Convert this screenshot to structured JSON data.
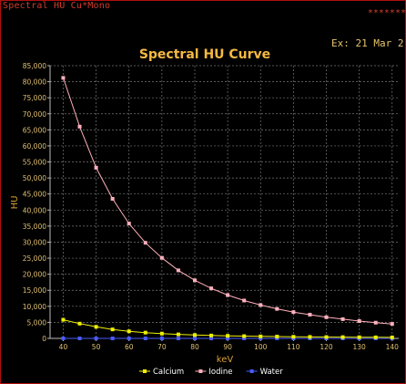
{
  "window": {
    "title": "Spectral HU Cu*Mono",
    "stars": "*******",
    "exam_text": "Ex: 21 Mar 2"
  },
  "chart_data": {
    "type": "line",
    "title": "Spectral HU Curve",
    "xlabel": "keV",
    "ylabel": "HU",
    "xlim": [
      36,
      142
    ],
    "ylim": [
      0,
      85000
    ],
    "grid": true,
    "legend_position": "bottom",
    "x_ticks": [
      40,
      50,
      60,
      70,
      80,
      90,
      100,
      110,
      120,
      130,
      140
    ],
    "y_ticks": [
      0,
      5000,
      10000,
      15000,
      20000,
      25000,
      30000,
      35000,
      40000,
      45000,
      50000,
      55000,
      60000,
      65000,
      70000,
      75000,
      80000,
      85000
    ],
    "x_tick_labels": [
      "40",
      "50",
      "60",
      "70",
      "80",
      "90",
      "100",
      "110",
      "120",
      "130",
      "140"
    ],
    "y_tick_labels": [
      "0",
      "5,000",
      "10,000",
      "15,000",
      "20,000",
      "25,000",
      "30,000",
      "35,000",
      "40,000",
      "45,000",
      "50,000",
      "55,000",
      "60,000",
      "65,000",
      "70,000",
      "75,000",
      "80,000",
      "85,000"
    ],
    "x": [
      40,
      45,
      50,
      55,
      60,
      65,
      70,
      75,
      80,
      85,
      90,
      95,
      100,
      105,
      110,
      115,
      120,
      125,
      130,
      135,
      140
    ],
    "series": [
      {
        "name": "Calcium",
        "color": "#f0f000",
        "values": [
          5800,
          4600,
          3600,
          2800,
          2200,
          1800,
          1500,
          1250,
          1050,
          900,
          800,
          700,
          620,
          560,
          500,
          460,
          420,
          390,
          360,
          330,
          310
        ]
      },
      {
        "name": "Iodine",
        "color": "#ffb0bc",
        "values": [
          81200,
          66000,
          53200,
          43500,
          35800,
          29800,
          25100,
          21200,
          18100,
          15600,
          13500,
          11800,
          10400,
          9200,
          8200,
          7400,
          6600,
          6000,
          5400,
          4900,
          4500
        ]
      },
      {
        "name": "Water",
        "color": "#4a5cff",
        "values": [
          0,
          0,
          0,
          0,
          0,
          0,
          0,
          0,
          0,
          0,
          0,
          0,
          0,
          0,
          0,
          0,
          0,
          0,
          0,
          0,
          0
        ]
      }
    ],
    "colors": {
      "title": "#f5b942",
      "axis_label": "#d8a035",
      "tick_label": "#e0c070",
      "grid": "#777777",
      "axis": "#bbbbbb",
      "legend_text": "#ffffff"
    }
  }
}
